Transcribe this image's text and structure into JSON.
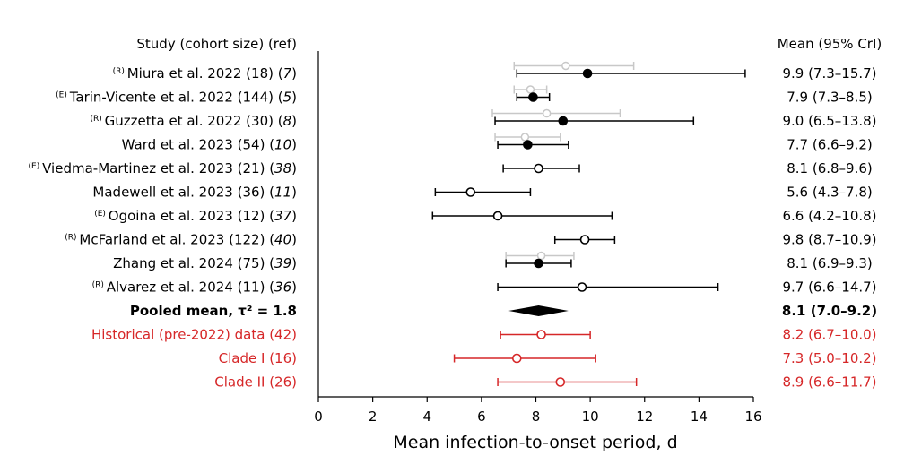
{
  "chart_data": {
    "type": "forest",
    "xlabel": "Mean infection-to-onset period, d",
    "left_header": "Study (cohort size) (ref)",
    "right_header": "Mean (95% CrI)",
    "xlim": [
      0,
      16
    ],
    "xticks": [
      0,
      2,
      4,
      6,
      8,
      10,
      12,
      14,
      16
    ],
    "colors": {
      "black": "#000000",
      "gray": "#c8c8c8",
      "red": "#d62728"
    },
    "rows": [
      {
        "prefix": "(R)",
        "label": "Miura et al. 2022 (18) (",
        "ref": "7",
        "suffix": ")",
        "ci_text": "9.9 (7.3–15.7)",
        "mean": 9.9,
        "lo": 7.3,
        "hi": 15.7,
        "filled": true,
        "color": "black",
        "secondary": {
          "mean": 9.1,
          "lo": 7.2,
          "hi": 11.6
        }
      },
      {
        "prefix": "(E)",
        "label": "Tarin-Vicente et al. 2022 (144) (",
        "ref": "5",
        "suffix": ")",
        "ci_text": "7.9 (7.3–8.5)",
        "mean": 7.9,
        "lo": 7.3,
        "hi": 8.5,
        "filled": true,
        "color": "black",
        "secondary": {
          "mean": 7.8,
          "lo": 7.2,
          "hi": 8.4
        }
      },
      {
        "prefix": "(R)",
        "label": "Guzzetta et al. 2022 (30) (",
        "ref": "8",
        "suffix": ")",
        "ci_text": "9.0 (6.5–13.8)",
        "mean": 9.0,
        "lo": 6.5,
        "hi": 13.8,
        "filled": true,
        "color": "black",
        "secondary": {
          "mean": 8.4,
          "lo": 6.4,
          "hi": 11.1
        }
      },
      {
        "prefix": "",
        "label": "Ward et al. 2023 (54) (",
        "ref": "10",
        "suffix": ")",
        "ci_text": "7.7 (6.6–9.2)",
        "mean": 7.7,
        "lo": 6.6,
        "hi": 9.2,
        "filled": true,
        "color": "black",
        "secondary": {
          "mean": 7.6,
          "lo": 6.5,
          "hi": 8.9
        }
      },
      {
        "prefix": "(E)",
        "label": "Viedma-Martinez et al. 2023 (21) (",
        "ref": "38",
        "suffix": ")",
        "ci_text": "8.1 (6.8–9.6)",
        "mean": 8.1,
        "lo": 6.8,
        "hi": 9.6,
        "filled": false,
        "color": "black"
      },
      {
        "prefix": "",
        "label": "Madewell et al. 2023 (36) (",
        "ref": "11",
        "suffix": ")",
        "ci_text": "5.6 (4.3–7.8)",
        "mean": 5.6,
        "lo": 4.3,
        "hi": 7.8,
        "filled": false,
        "color": "black"
      },
      {
        "prefix": "(E)",
        "label": "Ogoina et al. 2023 (12) (",
        "ref": "37",
        "suffix": ")",
        "ci_text": "6.6 (4.2–10.8)",
        "mean": 6.6,
        "lo": 4.2,
        "hi": 10.8,
        "filled": false,
        "color": "black"
      },
      {
        "prefix": "(R)",
        "label": "McFarland et al. 2023 (122) (",
        "ref": "40",
        "suffix": ")",
        "ci_text": "9.8 (8.7–10.9)",
        "mean": 9.8,
        "lo": 8.7,
        "hi": 10.9,
        "filled": false,
        "color": "black"
      },
      {
        "prefix": "",
        "label": "Zhang et al. 2024 (75) (",
        "ref": "39",
        "suffix": ")",
        "ci_text": "8.1 (6.9–9.3)",
        "mean": 8.1,
        "lo": 6.9,
        "hi": 9.3,
        "filled": true,
        "color": "black",
        "secondary": {
          "mean": 8.2,
          "lo": 6.9,
          "hi": 9.4
        }
      },
      {
        "prefix": "(R)",
        "label": "Alvarez et al. 2024 (11) (",
        "ref": "36",
        "suffix": ")",
        "ci_text": "9.7 (6.6–14.7)",
        "mean": 9.7,
        "lo": 6.6,
        "hi": 14.7,
        "filled": false,
        "color": "black"
      },
      {
        "prefix": "",
        "label": "Pooled mean, τ² = 1.8",
        "ref": "",
        "suffix": "",
        "ci_text": "8.1 (7.0–9.2)",
        "mean": 8.1,
        "lo": 7.0,
        "hi": 9.2,
        "pooled": true,
        "color": "black"
      },
      {
        "prefix": "",
        "label": "Historical (pre-2022) data (42)",
        "ref": "",
        "suffix": "",
        "ci_text": "8.2 (6.7–10.0)",
        "mean": 8.2,
        "lo": 6.7,
        "hi": 10.0,
        "filled": false,
        "color": "red"
      },
      {
        "prefix": "",
        "label": "Clade I  (16)",
        "ref": "",
        "suffix": "",
        "ci_text": "7.3 (5.0–10.2)",
        "mean": 7.3,
        "lo": 5.0,
        "hi": 10.2,
        "filled": false,
        "color": "red"
      },
      {
        "prefix": "",
        "label": "Clade II  (26)",
        "ref": "",
        "suffix": "",
        "ci_text": "8.9 (6.6–11.7)",
        "mean": 8.9,
        "lo": 6.6,
        "hi": 11.7,
        "filled": false,
        "color": "red"
      }
    ]
  }
}
